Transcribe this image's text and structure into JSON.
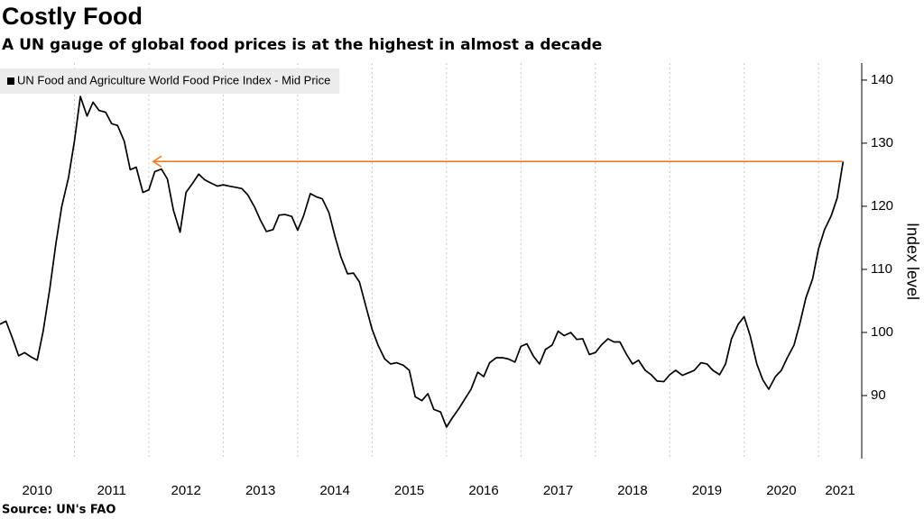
{
  "chart_data": {
    "type": "line",
    "title": "Costly Food",
    "subtitle": "A UN gauge of global food prices is at the highest in almost a decade",
    "source": "Source: UN's FAO",
    "y_axis_label": "Index level",
    "xlim": [
      2010,
      2021.58
    ],
    "xticks": [
      2010,
      2011,
      2012,
      2013,
      2014,
      2015,
      2016,
      2017,
      2018,
      2019,
      2020,
      2021
    ],
    "ylim": [
      80,
      142.7
    ],
    "yticks": [
      90,
      100,
      110,
      120,
      130,
      140
    ],
    "grid": "x",
    "legend": "top-left",
    "series": [
      {
        "name": "UN Food and Agriculture World Food Price Index - Mid Price",
        "color": "#000000",
        "x": [
          2010,
          2010.08,
          2010.17,
          2010.25,
          2010.33,
          2010.42,
          2010.5,
          2010.58,
          2010.67,
          2010.75,
          2010.83,
          2010.92,
          2011,
          2011.08,
          2011.17,
          2011.25,
          2011.33,
          2011.42,
          2011.5,
          2011.58,
          2011.67,
          2011.75,
          2011.83,
          2011.92,
          2012,
          2012.08,
          2012.17,
          2012.25,
          2012.33,
          2012.42,
          2012.5,
          2012.58,
          2012.67,
          2012.75,
          2012.83,
          2012.92,
          2013,
          2013.08,
          2013.17,
          2013.25,
          2013.33,
          2013.42,
          2013.5,
          2013.58,
          2013.67,
          2013.75,
          2013.83,
          2013.92,
          2014,
          2014.08,
          2014.17,
          2014.25,
          2014.33,
          2014.42,
          2014.5,
          2014.58,
          2014.67,
          2014.75,
          2014.83,
          2014.92,
          2015,
          2015.08,
          2015.17,
          2015.25,
          2015.33,
          2015.42,
          2015.5,
          2015.58,
          2015.67,
          2015.75,
          2015.83,
          2015.92,
          2016,
          2016.08,
          2016.17,
          2016.25,
          2016.33,
          2016.42,
          2016.5,
          2016.58,
          2016.67,
          2016.75,
          2016.83,
          2016.92,
          2017,
          2017.08,
          2017.17,
          2017.25,
          2017.33,
          2017.42,
          2017.5,
          2017.58,
          2017.67,
          2017.75,
          2017.83,
          2017.92,
          2018,
          2018.08,
          2018.17,
          2018.25,
          2018.33,
          2018.42,
          2018.5,
          2018.58,
          2018.67,
          2018.75,
          2018.83,
          2018.92,
          2019,
          2019.08,
          2019.17,
          2019.25,
          2019.33,
          2019.42,
          2019.5,
          2019.58,
          2019.67,
          2019.75,
          2019.83,
          2019.92,
          2020,
          2020.08,
          2020.17,
          2020.25,
          2020.33,
          2020.42,
          2020.5,
          2020.58,
          2020.67,
          2020.75,
          2020.83,
          2020.92,
          2021,
          2021.08,
          2021.17,
          2021.25,
          2021.33
        ],
        "values": [
          101.3,
          101.8,
          99,
          96.3,
          96.8,
          96.1,
          95.6,
          100.2,
          107,
          114,
          120,
          124.5,
          130.3,
          137.4,
          134.3,
          136.5,
          135.2,
          134.9,
          133.1,
          132.8,
          130.3,
          125.8,
          126.2,
          122.2,
          122.6,
          125.5,
          125.9,
          124.3,
          119.4,
          115.9,
          122.2,
          123.5,
          125.1,
          124.2,
          123.7,
          123.2,
          123.4,
          123.2,
          123,
          122.8,
          121.8,
          119.9,
          117.8,
          116,
          116.3,
          118.6,
          118.7,
          118.4,
          116.2,
          118.5,
          122,
          121.5,
          121.2,
          119,
          115.3,
          112,
          109.3,
          109.4,
          108,
          104,
          100.5,
          98,
          95.8,
          95,
          95.2,
          94.8,
          94,
          89.8,
          89.2,
          90.3,
          87.8,
          87.4,
          85,
          86.5,
          88,
          89.5,
          91,
          93.7,
          93,
          95.2,
          96,
          96,
          95.8,
          95.3,
          97.8,
          98.2,
          96.2,
          95,
          97.3,
          98,
          100.2,
          99.5,
          100,
          98.9,
          99,
          96.5,
          96.8,
          98,
          99,
          98.5,
          98.5,
          96.5,
          95,
          95.6,
          94,
          93.3,
          92.3,
          92.2,
          93.3,
          94,
          93.2,
          93.6,
          94,
          95.2,
          95,
          94,
          93.3,
          95,
          99,
          101.3,
          102.5,
          99.5,
          95,
          92.5,
          91,
          93,
          94,
          96,
          98,
          101.5,
          105.5,
          108.5,
          113.3,
          116.3,
          118.5,
          121.3,
          127.1
        ]
      }
    ],
    "annotation": {
      "type": "arrow",
      "y": 127.1,
      "x_from": 2021.33,
      "x_to": 2012.06,
      "color": "#f47b20"
    }
  }
}
